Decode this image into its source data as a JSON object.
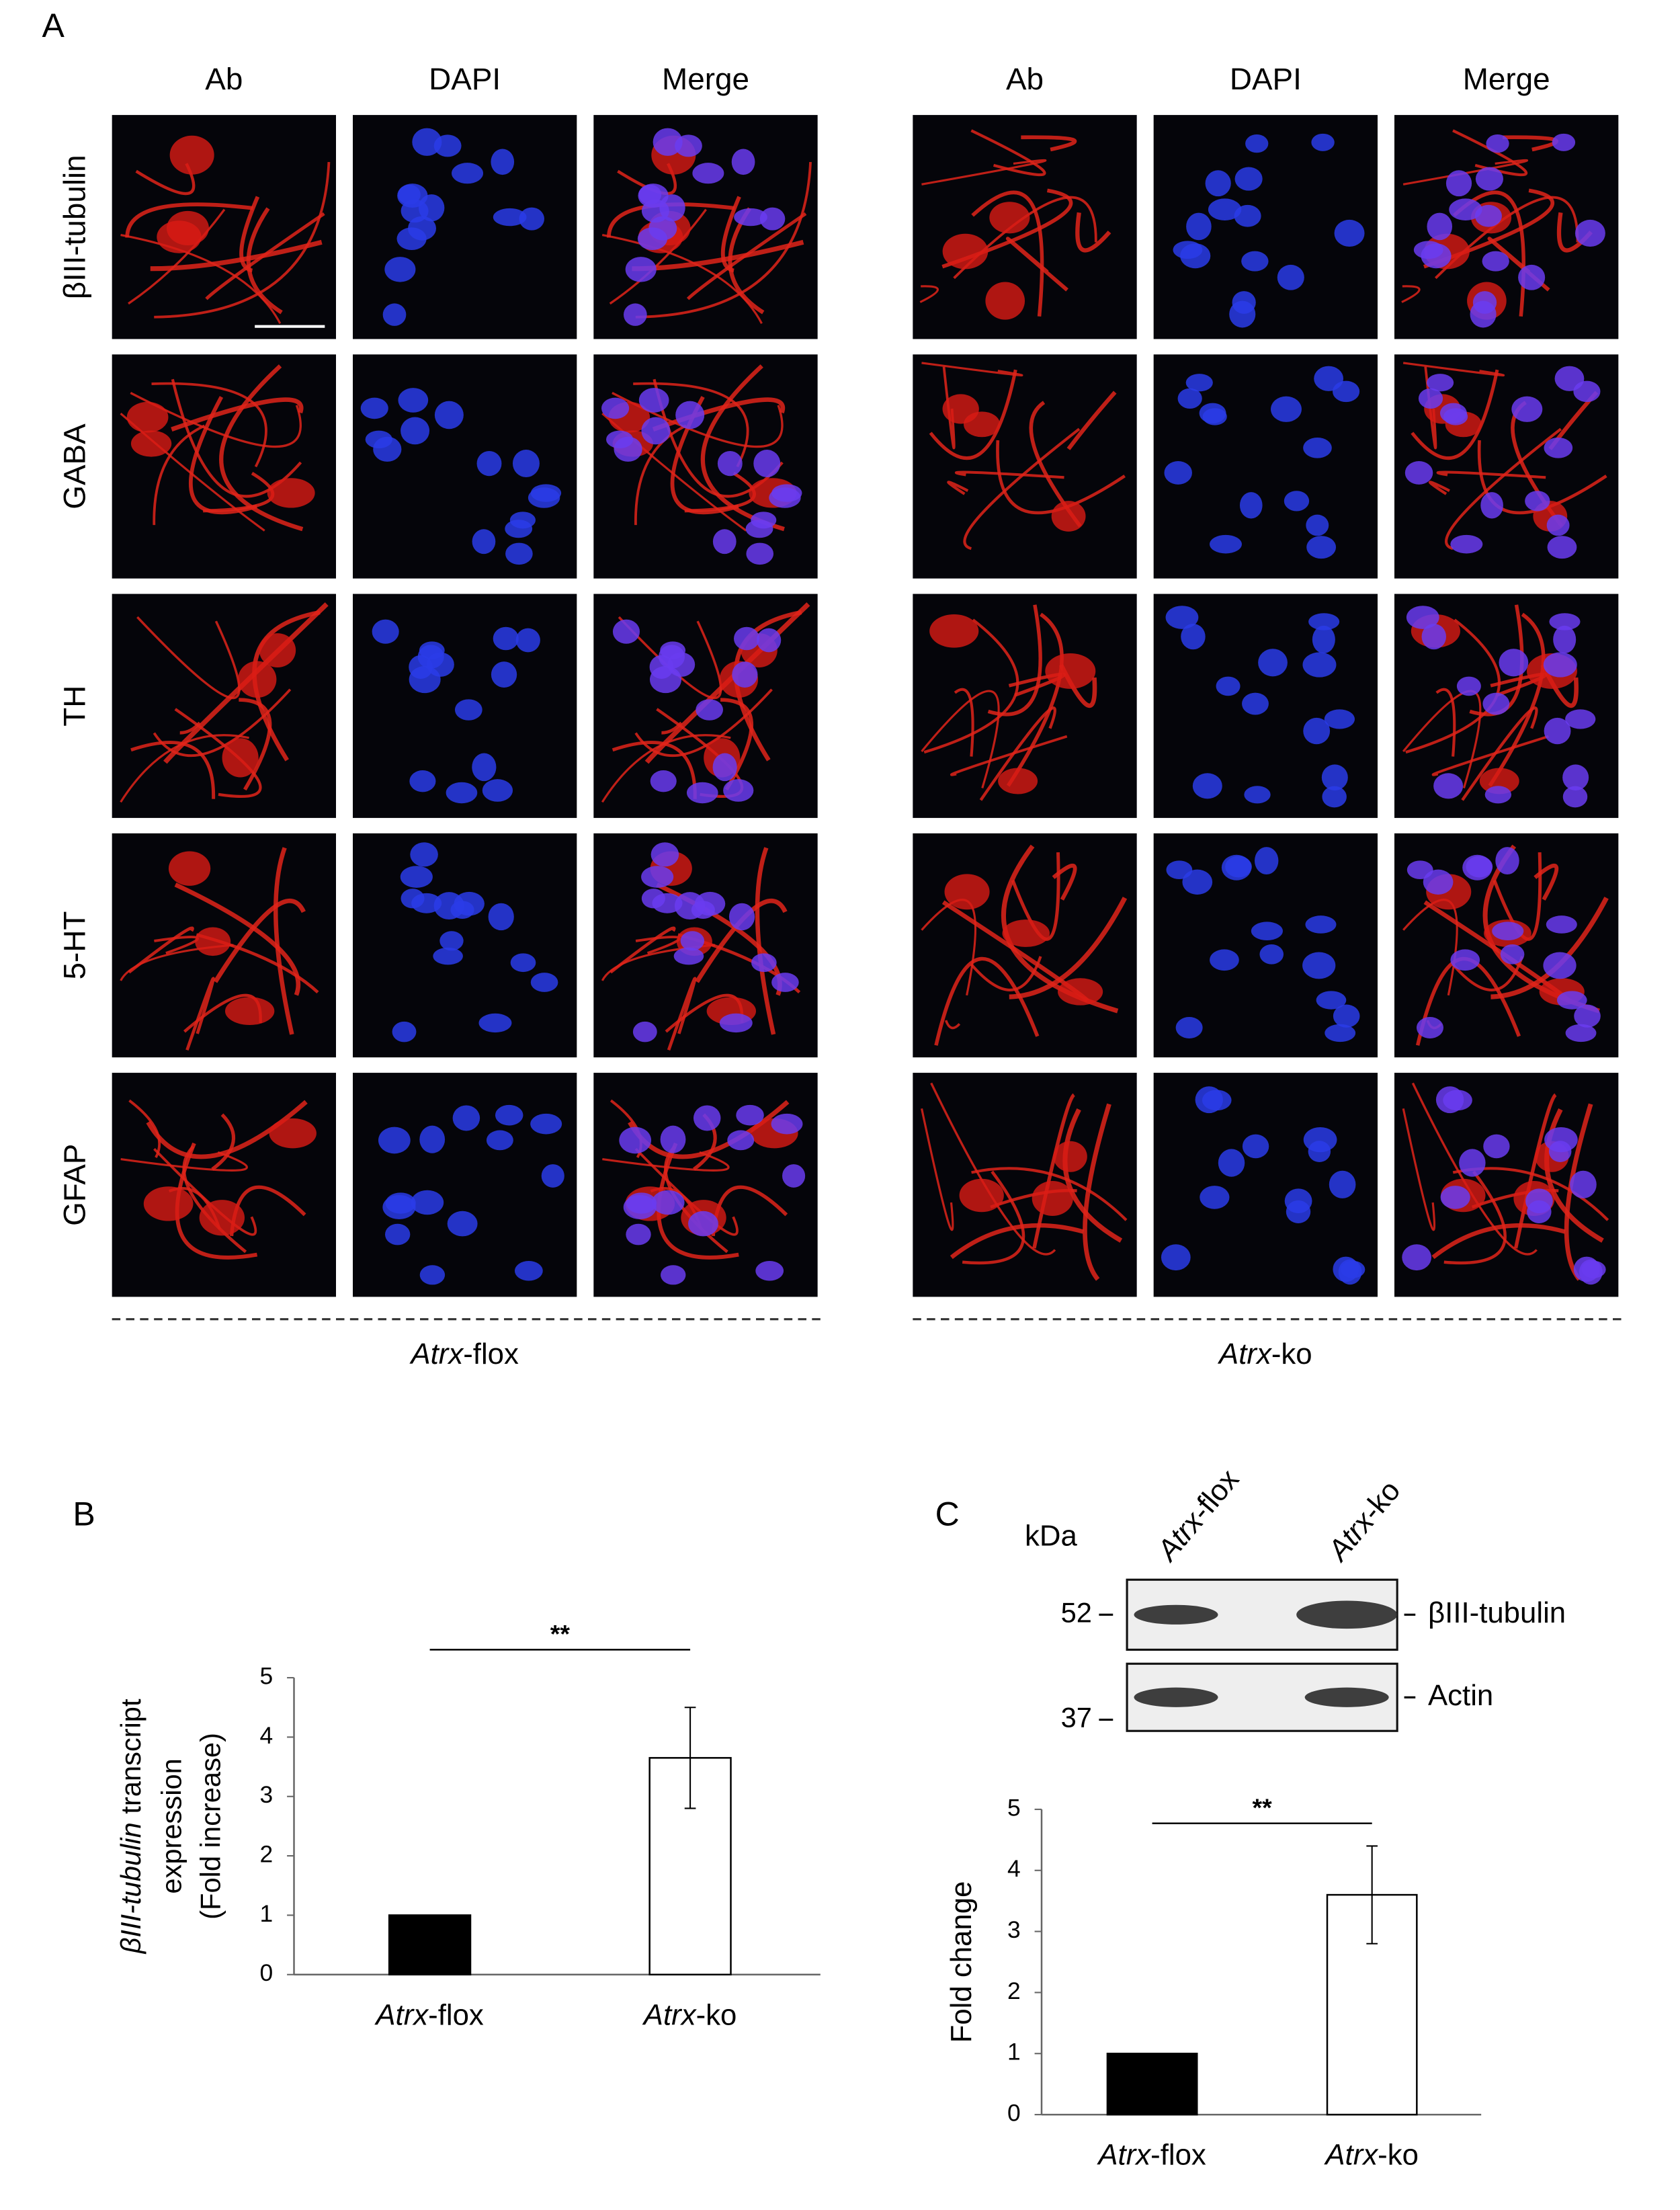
{
  "figure": {
    "panel_a": {
      "label": "A",
      "channels": [
        "Ab",
        "DAPI",
        "Merge"
      ],
      "channel_colors": [
        "#e8201c",
        "#3a5cff",
        "#e040e0"
      ],
      "marker_color": "#e8201c",
      "markers": [
        "βIII-tubulin",
        "GABA",
        "TH",
        "5-HT",
        "GFAP"
      ],
      "groups": [
        {
          "italic": "Atrx",
          "text": "-flox"
        },
        {
          "italic": "Atrx",
          "text": "-ko"
        }
      ]
    },
    "panel_c_blot": {
      "label": "C",
      "unit": "kDa",
      "lanes": [
        {
          "italic": "Atrx",
          "text": "-flox"
        },
        {
          "italic": "Atrx",
          "text": "-ko"
        }
      ],
      "bands": [
        "βIII-tubulin",
        "Actin"
      ],
      "markers": [
        52,
        37
      ]
    }
  },
  "chart_data": [
    {
      "type": "bar",
      "label": "B",
      "ylabel_parts": {
        "italic": "βIII-tubulin",
        "text": "transcript"
      },
      "ylabel_lines": [
        "expression",
        "(Fold increase)"
      ],
      "categories": [
        {
          "italic": "Atrx",
          "text": "-flox"
        },
        {
          "italic": "Atrx",
          "text": "-ko"
        }
      ],
      "values": [
        1.0,
        3.65
      ],
      "errors": [
        0,
        0.85
      ],
      "colors": [
        "#000000",
        "#ffffff"
      ],
      "significance": "**",
      "ylim": [
        0,
        5
      ],
      "yticks": [
        0,
        1,
        2,
        3,
        4,
        5
      ]
    },
    {
      "type": "bar",
      "ylabel": "Fold change",
      "categories": [
        {
          "italic": "Atrx",
          "text": "-flox"
        },
        {
          "italic": "Atrx",
          "text": "-ko"
        }
      ],
      "values": [
        1.0,
        3.6
      ],
      "errors": [
        0,
        0.8
      ],
      "colors": [
        "#000000",
        "#ffffff"
      ],
      "significance": "**",
      "ylim": [
        0,
        5
      ],
      "yticks": [
        0,
        1,
        2,
        3,
        4,
        5
      ]
    }
  ]
}
